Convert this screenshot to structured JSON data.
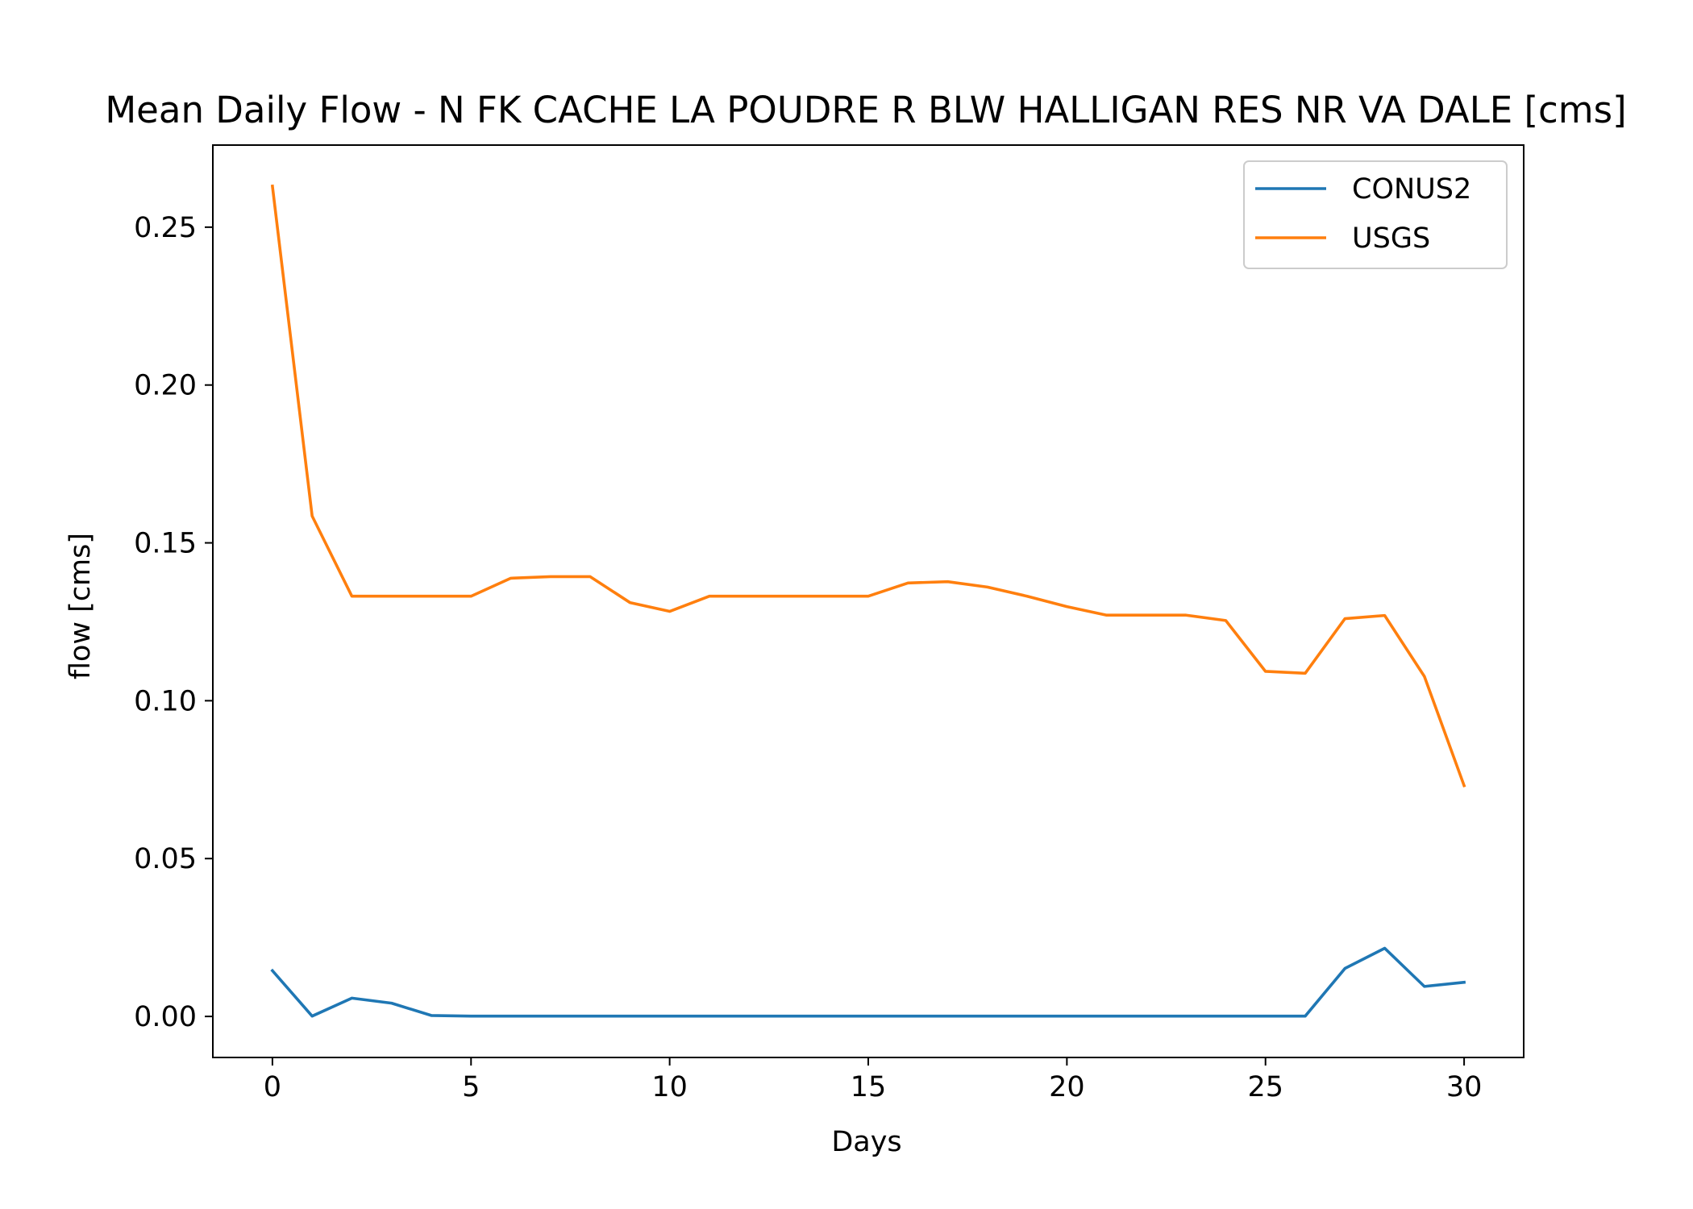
{
  "chart_data": {
    "type": "line",
    "title": "Mean Daily Flow - N FK CACHE LA POUDRE R BLW HALLIGAN RES NR VA DALE [cms]",
    "xlabel": "Days",
    "ylabel": "flow [cms]",
    "xlim": [
      -1.5,
      31.5
    ],
    "ylim": [
      -0.013,
      0.276
    ],
    "xticks": [
      0,
      5,
      10,
      15,
      20,
      25,
      30
    ],
    "yticks": [
      "0.00",
      "0.05",
      "0.10",
      "0.15",
      "0.20",
      "0.25"
    ],
    "grid": false,
    "legend_position": "top-right",
    "x": [
      0,
      1,
      2,
      3,
      4,
      5,
      6,
      7,
      8,
      9,
      10,
      11,
      12,
      13,
      14,
      15,
      16,
      17,
      18,
      19,
      20,
      21,
      22,
      23,
      24,
      25,
      26,
      27,
      28,
      29,
      30
    ],
    "series": [
      {
        "name": "CONUS2",
        "color": "#1f77b4",
        "values": [
          0.0145,
          0.0001,
          0.0058,
          0.0042,
          0.0003,
          0.0001,
          0.0001,
          0.0001,
          0.0001,
          0.0001,
          0.0001,
          0.0001,
          0.0001,
          0.0001,
          0.0001,
          0.0001,
          0.0001,
          0.0001,
          0.0001,
          0.0001,
          0.0001,
          0.0001,
          0.0001,
          0.0001,
          0.0001,
          0.0001,
          0.0001,
          0.0152,
          0.0216,
          0.0095,
          0.0108
        ]
      },
      {
        "name": "USGS",
        "color": "#ff7f0e",
        "values": [
          0.263,
          0.1585,
          0.1331,
          0.1331,
          0.1331,
          0.1331,
          0.1388,
          0.1393,
          0.1393,
          0.1311,
          0.1283,
          0.1331,
          0.1331,
          0.1331,
          0.1331,
          0.1331,
          0.1373,
          0.1377,
          0.136,
          0.1331,
          0.1298,
          0.1271,
          0.1271,
          0.1271,
          0.1254,
          0.1093,
          0.1087,
          0.126,
          0.127,
          0.1077,
          0.0731
        ]
      }
    ]
  }
}
